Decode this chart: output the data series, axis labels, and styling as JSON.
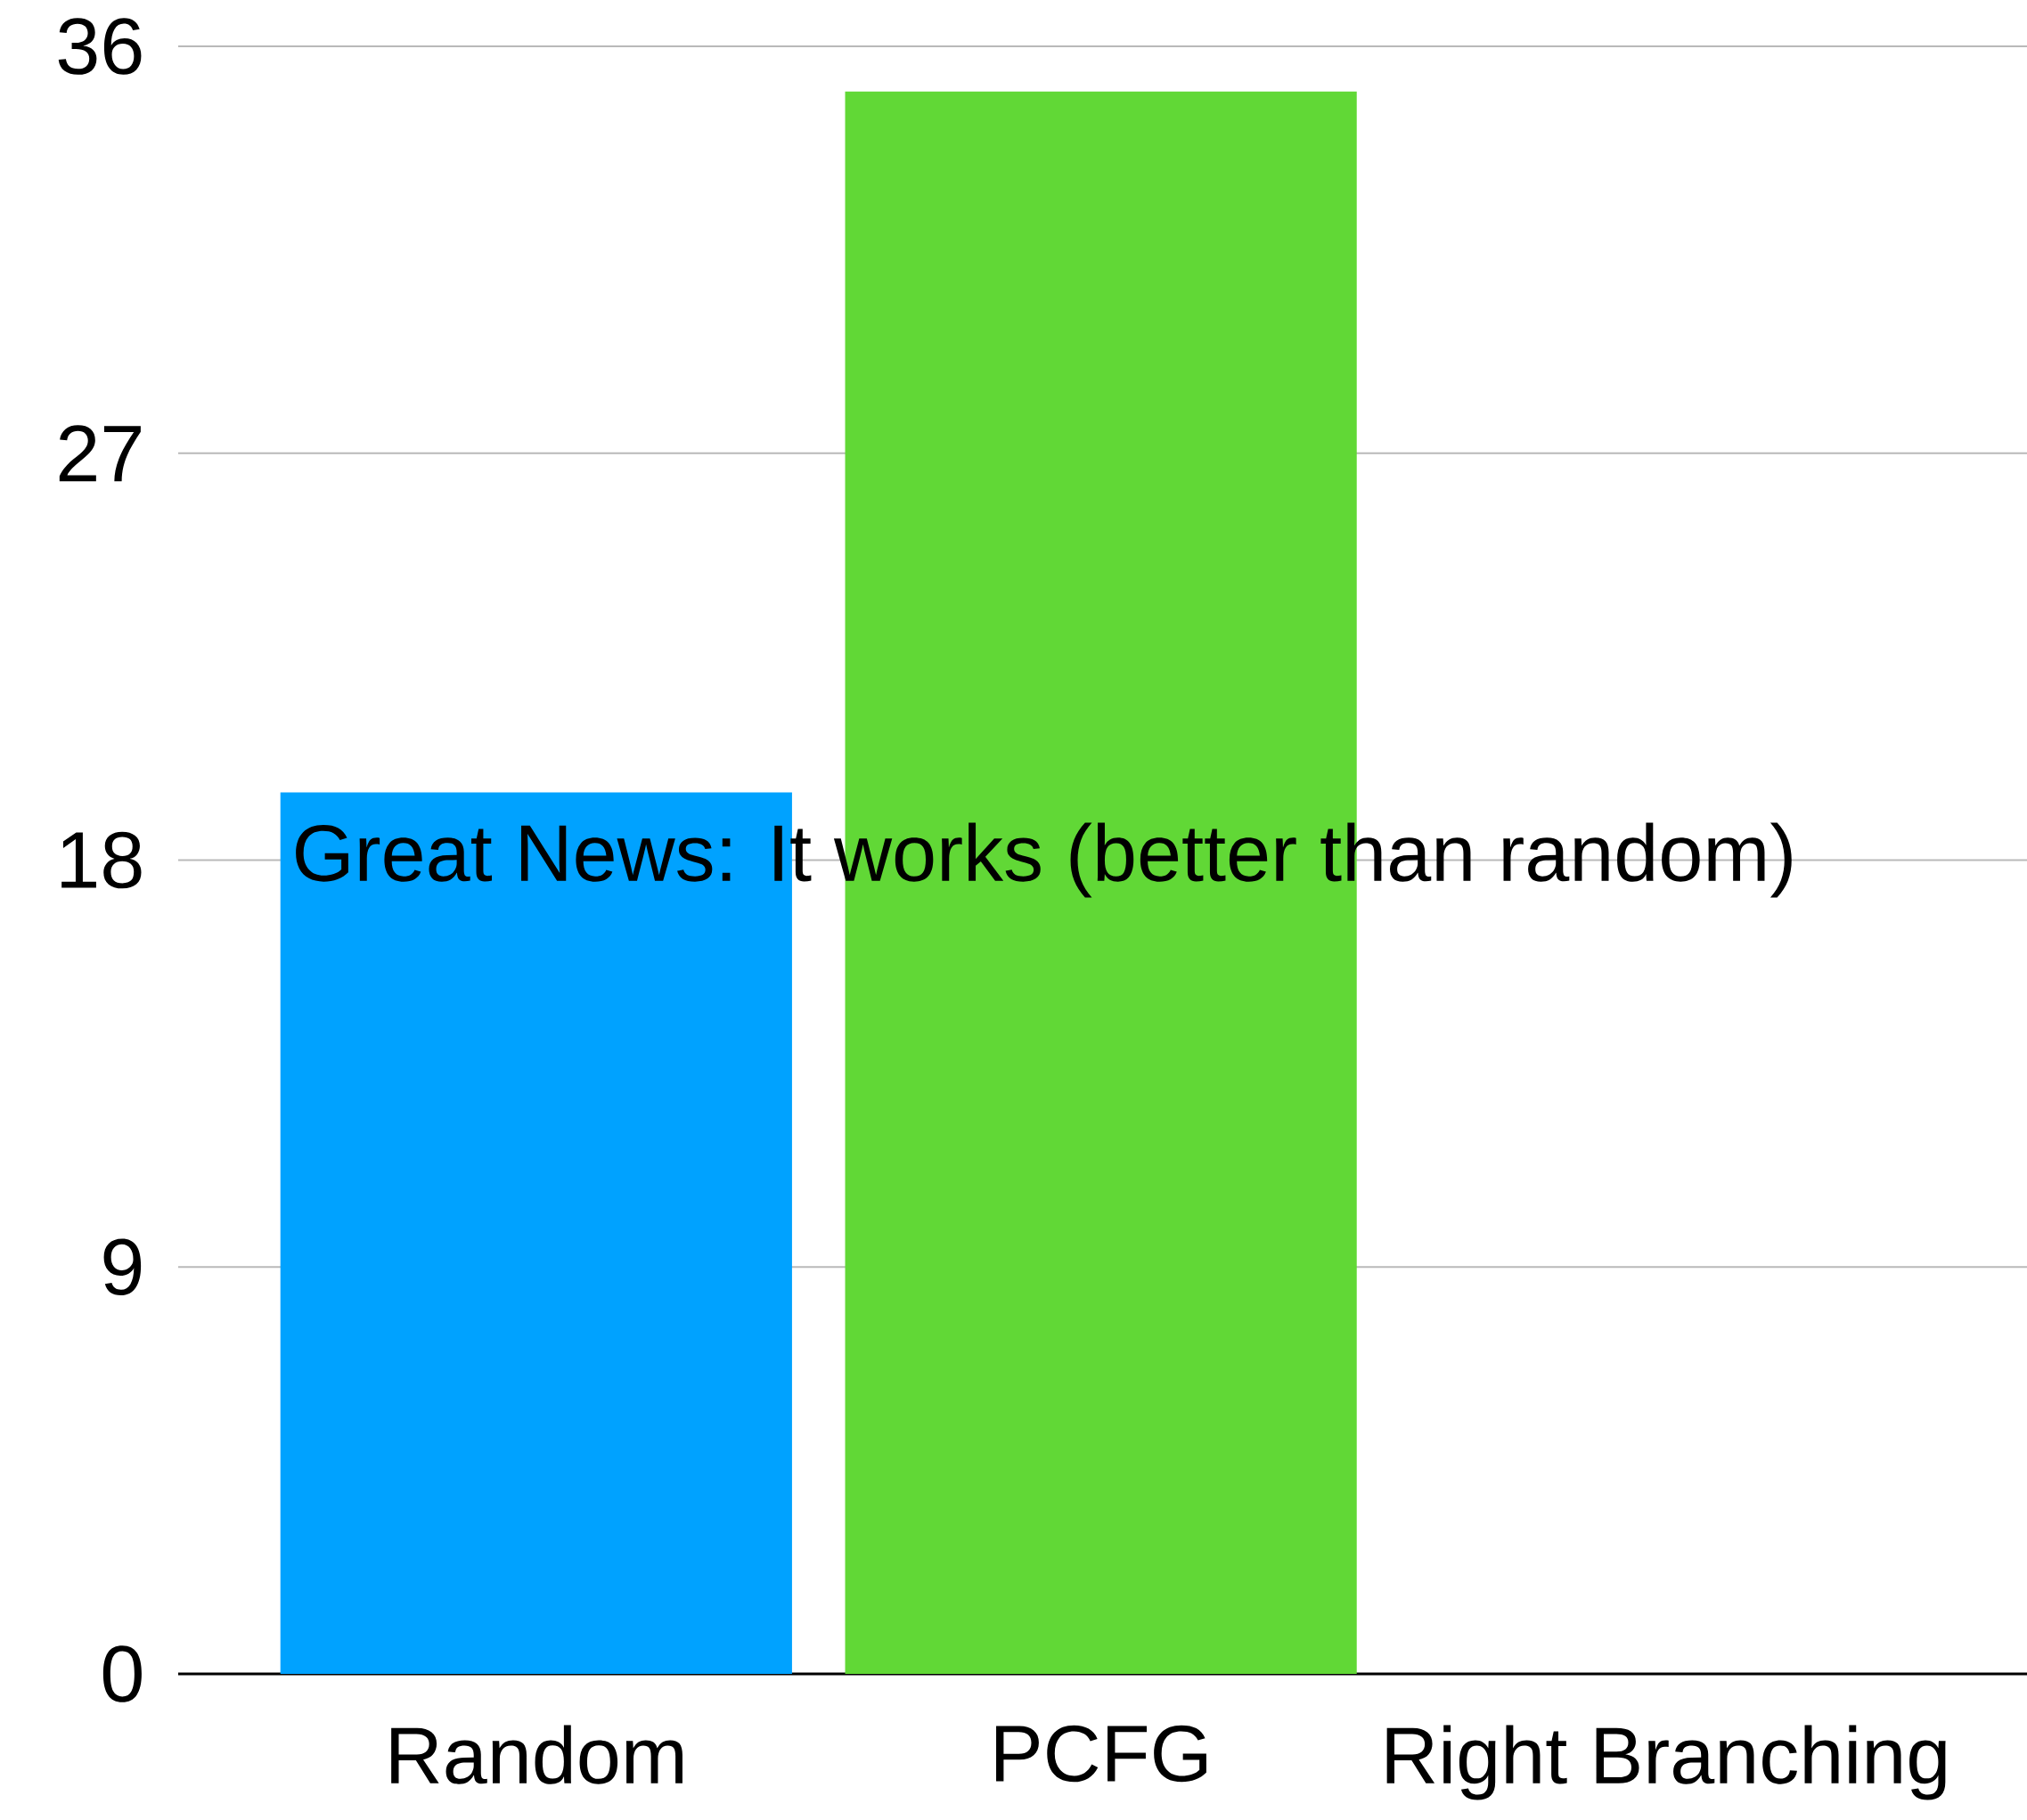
{
  "chart_data": {
    "type": "bar",
    "categories": [
      "Random",
      "PCFG",
      "Right Branching"
    ],
    "values": [
      19.5,
      35,
      null
    ],
    "colors": [
      "#00a2ff",
      "#61d836",
      "#61d836"
    ],
    "ylim": [
      0,
      36
    ],
    "yticks": [
      0,
      9,
      18,
      27,
      36
    ],
    "grid": "y",
    "annotations": [
      "Great News: It works (better than random)"
    ]
  }
}
